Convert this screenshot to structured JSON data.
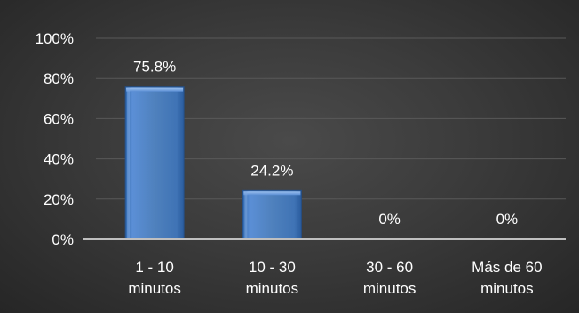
{
  "chart_data": {
    "type": "bar",
    "title": "",
    "xlabel": "",
    "ylabel": "",
    "categories": [
      [
        "1 - 10",
        "minutos"
      ],
      [
        "10 - 30",
        "minutos"
      ],
      [
        "30 - 60",
        "minutos"
      ],
      [
        "Más de 60",
        "minutos"
      ]
    ],
    "values": [
      75.8,
      24.2,
      0,
      0
    ],
    "data_labels": [
      "75.8%",
      "24.2%",
      "0%",
      "0%"
    ],
    "ylim": [
      0,
      100
    ],
    "yticks": [
      0,
      20,
      40,
      60,
      80,
      100
    ],
    "ytick_labels": [
      "0%",
      "20%",
      "40%",
      "60%",
      "80%",
      "100%"
    ],
    "grid": true,
    "legend": "none",
    "colors": {
      "bar_fill": "#4f81bd",
      "bar_highlight": "#8db3e2",
      "bar_shadow": "#2c5a96",
      "background": "#3a3a3a",
      "gridline": "#595959",
      "axis": "#bfbfbf",
      "text": "#ffffff"
    }
  }
}
